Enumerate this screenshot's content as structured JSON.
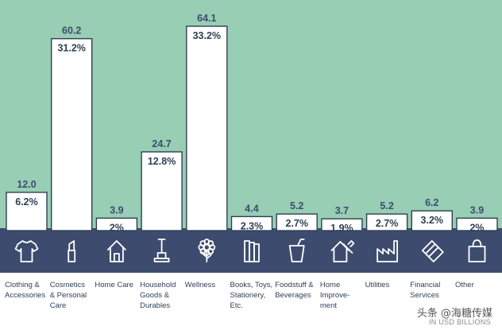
{
  "chart_data": {
    "type": "bar",
    "categories": [
      "Clothing &\nAccessories",
      "Cosmetics\n& Personal\nCare",
      "Home Care",
      "Household\nGoods &\nDurables",
      "Wellness",
      "Books, Toys,\nStationery,\nEtc.",
      "Foodstuff &\nBeverages",
      "Home\nImprove-\nment",
      "Utilities",
      "Financial\nServices",
      "Other"
    ],
    "values": [
      12.0,
      60.2,
      3.9,
      24.7,
      64.1,
      4.4,
      5.2,
      3.7,
      5.2,
      6.2,
      3.9
    ],
    "value_labels": [
      "12.0",
      "60.2",
      "3.9",
      "24.7",
      "64.1",
      "4.4",
      "5.2",
      "3.7",
      "5.2",
      "6.2",
      "3.9"
    ],
    "share_labels": [
      "6.2%",
      "31.2%",
      "2%",
      "12.8%",
      "33.2%",
      "2.3%",
      "2.7%",
      "1.9%",
      "2.7%",
      "3.2%",
      "2%"
    ],
    "icons": [
      "tshirt-icon",
      "lipstick-icon",
      "house-icon",
      "vacuum-icon",
      "flower-icon",
      "books-icon",
      "drink-cup-icon",
      "house-hammer-icon",
      "factory-icon",
      "banknotes-icon",
      "shopping-bag-icon"
    ],
    "unit_note": "IN USD BILLIONS",
    "ylim": [
      0,
      70
    ],
    "grid": false,
    "colors": {
      "plot_background": "#98ceb4",
      "icon_band": "#3d4c6e",
      "bar_fill": "#ffffff",
      "bar_stroke": "#2f3f55",
      "value_text": "#3d4c6e",
      "label_text": "#2f3f55"
    }
  },
  "watermark": "头条 @海糖传媒"
}
